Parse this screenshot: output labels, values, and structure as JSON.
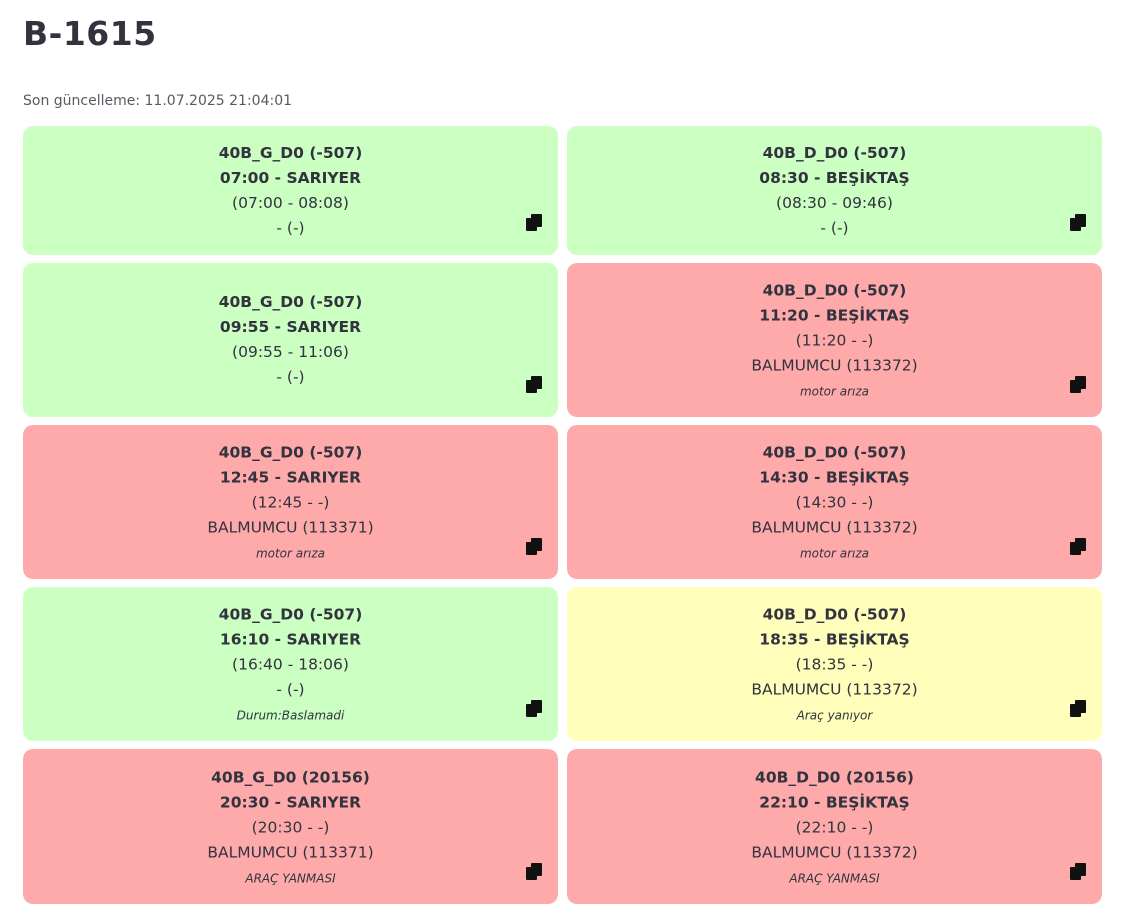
{
  "page": {
    "title": "B-1615",
    "last_updated": "Son güncelleme: 11.07.2025 21:04:01"
  },
  "cards": [
    {
      "route": "40B_G_D0 (-507)",
      "departure": "07:00 - SARIYER",
      "times": "(07:00 - 08:08)",
      "vehicle": "- (-)",
      "note": "",
      "status_color": "#ccffc2",
      "icon": "copy-icon"
    },
    {
      "route": "40B_D_D0 (-507)",
      "departure": "08:30 - BEŞİKTAŞ",
      "times": "(08:30 - 09:46)",
      "vehicle": "- (-)",
      "note": "",
      "status_color": "#ccffc2",
      "icon": "copy-icon"
    },
    {
      "route": "40B_G_D0 (-507)",
      "departure": "09:55 - SARIYER",
      "times": "(09:55 - 11:06)",
      "vehicle": "- (-)",
      "note": "",
      "status_color": "#ccffc2",
      "icon": "copy-icon"
    },
    {
      "route": "40B_D_D0 (-507)",
      "departure": "11:20 - BEŞİKTAŞ",
      "times": "(11:20 - -)",
      "vehicle": "BALMUMCU (113372)",
      "note": "motor arıza",
      "status_color": "#ffaaaa",
      "icon": "copy-icon"
    },
    {
      "route": "40B_G_D0 (-507)",
      "departure": "12:45 - SARIYER",
      "times": "(12:45 - -)",
      "vehicle": "BALMUMCU (113371)",
      "note": "motor arıza",
      "status_color": "#ffaaaa",
      "icon": "copy-icon"
    },
    {
      "route": "40B_D_D0 (-507)",
      "departure": "14:30 - BEŞİKTAŞ",
      "times": "(14:30 - -)",
      "vehicle": "BALMUMCU (113372)",
      "note": "motor arıza",
      "status_color": "#ffaaaa",
      "icon": "copy-icon"
    },
    {
      "route": "40B_G_D0 (-507)",
      "departure": "16:10 - SARIYER",
      "times": "(16:40 - 18:06)",
      "vehicle": "- (-)",
      "note": "Durum:Baslamadi",
      "status_color": "#ccffc2",
      "icon": "copy-icon"
    },
    {
      "route": "40B_D_D0 (-507)",
      "departure": "18:35 - BEŞİKTAŞ",
      "times": "(18:35 - -)",
      "vehicle": "BALMUMCU (113372)",
      "note": "Araç yanıyor",
      "status_color": "#ffffbb",
      "icon": "copy-icon"
    },
    {
      "route": "40B_G_D0 (20156)",
      "departure": "20:30 - SARIYER",
      "times": "(20:30 - -)",
      "vehicle": "BALMUMCU (113371)",
      "note": "ARAÇ YANMASI",
      "status_color": "#ffaaaa",
      "icon": "copy-icon"
    },
    {
      "route": "40B_D_D0 (20156)",
      "departure": "22:10 - BEŞİKTAŞ",
      "times": "(22:10 - -)",
      "vehicle": "BALMUMCU (113372)",
      "note": "ARAÇ YANMASI",
      "status_color": "#ffaaaa",
      "icon": "copy-icon"
    }
  ]
}
